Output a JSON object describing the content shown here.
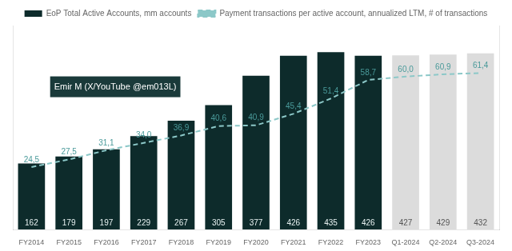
{
  "chart_data": {
    "type": "bar",
    "categories": [
      "FY2014",
      "FY2015",
      "FY2016",
      "FY2017",
      "FY2018",
      "FY2019",
      "FY2020",
      "FY2021",
      "FY2022",
      "FY2023",
      "Q1-2024",
      "Q2-2024",
      "Q3-2024"
    ],
    "series": [
      {
        "name": "EoP Total Active Accounts, mm accounts",
        "type": "bar",
        "colors": [
          "#0d2b2b",
          "#0d2b2b",
          "#0d2b2b",
          "#0d2b2b",
          "#0d2b2b",
          "#0d2b2b",
          "#0d2b2b",
          "#0d2b2b",
          "#0d2b2b",
          "#0d2b2b",
          "#dcdcdc",
          "#dcdcdc",
          "#dcdcdc"
        ],
        "values": [
          162,
          179,
          197,
          229,
          267,
          305,
          377,
          426,
          435,
          426,
          427,
          429,
          432
        ]
      },
      {
        "name": "Payment transactions per active account, annualized LTM, # of transactions",
        "type": "line",
        "axis": "y2",
        "color": "#8cc8c8",
        "line_style": "dashed",
        "marker": "none",
        "values": [
          24.5,
          27.5,
          31.1,
          34.0,
          36.9,
          40.6,
          40.9,
          45.4,
          51.4,
          58.7,
          60.0,
          60.9,
          61.4
        ],
        "value_labels": [
          "24,5",
          "27,5",
          "31,1",
          "34,0",
          "36,9",
          "40,6",
          "40,9",
          "45,4",
          "51,4",
          "58,7",
          "60,0",
          "60,9",
          "61,4"
        ]
      }
    ],
    "ylim": [
      0,
      500
    ],
    "y2lim": [
      0,
      80
    ],
    "tick_labels": "x",
    "grid": false,
    "legend": "top",
    "data_labels": true,
    "annotations": [
      "Emir M (X/YouTube @em013L)"
    ]
  }
}
